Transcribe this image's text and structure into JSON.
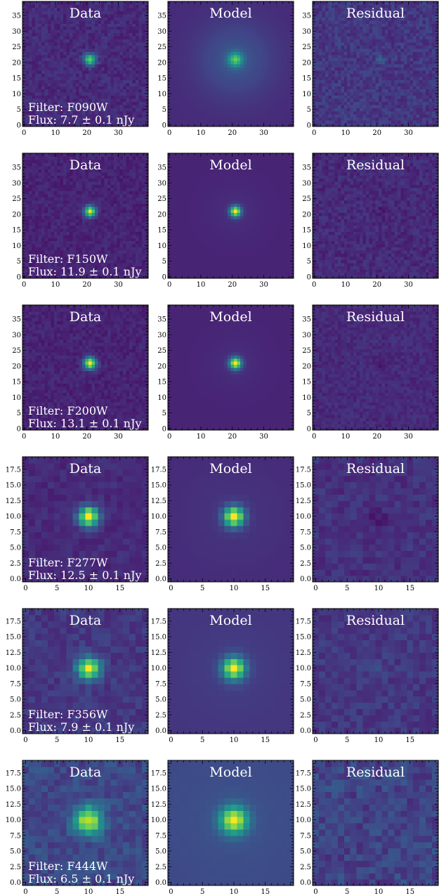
{
  "colors": {
    "colormap": "viridis",
    "background": "#ffffff",
    "annotation_text": "#ffffff",
    "axis": "#000000"
  },
  "chart_data": {
    "type": "heatmap",
    "layout": "6 rows x 3 columns of image panels",
    "column_titles": [
      "Data",
      "Model",
      "Residual"
    ],
    "axis_ticks_inward": true,
    "rows": [
      {
        "filter_label": "Filter: F090W",
        "flux_label": "Flux: 7.7 ± 0.1 nJy",
        "image_size": 40,
        "xlim": [
          0,
          39
        ],
        "ylim": [
          0,
          39
        ],
        "xticks": [
          0,
          10,
          20,
          30
        ],
        "yticks": [
          0,
          5,
          10,
          15,
          20,
          25,
          30,
          35
        ],
        "source_center": [
          21,
          21
        ],
        "panels": [
          {
            "title": "Data",
            "bg_level": 0.12,
            "noise": 0.05,
            "peak": 0.65,
            "sigma": 1.3
          },
          {
            "title": "Model",
            "bg_level": 0.12,
            "noise": 0.0,
            "peak": 0.5,
            "sigma": 1.6,
            "extended": true
          },
          {
            "title": "Residual",
            "bg_level": 0.16,
            "noise": 0.06,
            "peak": 0.15,
            "sigma": 1.0
          }
        ]
      },
      {
        "filter_label": "Filter: F150W",
        "flux_label": "Flux: 11.9 ± 0.1 nJy",
        "image_size": 40,
        "xlim": [
          0,
          39
        ],
        "ylim": [
          0,
          39
        ],
        "xticks": [
          0,
          10,
          20,
          30
        ],
        "yticks": [
          0,
          5,
          10,
          15,
          20,
          25,
          30,
          35
        ],
        "source_center": [
          21,
          21
        ],
        "panels": [
          {
            "title": "Data",
            "bg_level": 0.1,
            "noise": 0.04,
            "peak": 0.88,
            "sigma": 1.2
          },
          {
            "title": "Model",
            "bg_level": 0.1,
            "noise": 0.0,
            "peak": 0.88,
            "sigma": 1.2
          },
          {
            "title": "Residual",
            "bg_level": 0.12,
            "noise": 0.05,
            "peak": -0.05,
            "sigma": 1.2
          }
        ]
      },
      {
        "filter_label": "Filter: F200W",
        "flux_label": "Flux: 13.1 ± 0.1 nJy",
        "image_size": 40,
        "xlim": [
          0,
          39
        ],
        "ylim": [
          0,
          39
        ],
        "xticks": [
          0,
          10,
          20,
          30
        ],
        "yticks": [
          0,
          5,
          10,
          15,
          20,
          25,
          30,
          35
        ],
        "source_center": [
          21,
          21
        ],
        "panels": [
          {
            "title": "Data",
            "bg_level": 0.1,
            "noise": 0.04,
            "peak": 0.9,
            "sigma": 1.3
          },
          {
            "title": "Model",
            "bg_level": 0.1,
            "noise": 0.0,
            "peak": 0.9,
            "sigma": 1.3
          },
          {
            "title": "Residual",
            "bg_level": 0.12,
            "noise": 0.04,
            "peak": -0.07,
            "sigma": 1.2
          }
        ]
      },
      {
        "filter_label": "Filter: F277W",
        "flux_label": "Flux: 12.5 ± 0.1 nJy",
        "image_size": 20,
        "xlim": [
          0,
          19
        ],
        "ylim": [
          0,
          19
        ],
        "xticks": [
          0,
          5,
          10,
          15
        ],
        "yticks": [
          0.0,
          2.5,
          5.0,
          7.5,
          10.0,
          12.5,
          15.0,
          17.5
        ],
        "source_center": [
          10,
          10
        ],
        "panels": [
          {
            "title": "Data",
            "bg_level": 0.12,
            "noise": 0.04,
            "peak": 0.9,
            "sigma": 1.1
          },
          {
            "title": "Model",
            "bg_level": 0.12,
            "noise": 0.0,
            "peak": 0.9,
            "sigma": 1.1
          },
          {
            "title": "Residual",
            "bg_level": 0.14,
            "noise": 0.05,
            "peak": -0.08,
            "sigma": 0.9
          }
        ]
      },
      {
        "filter_label": "Filter: F356W",
        "flux_label": "Flux: 7.9 ± 0.1 nJy",
        "image_size": 20,
        "xlim": [
          0,
          19
        ],
        "ylim": [
          0,
          19
        ],
        "xticks": [
          0,
          5,
          10,
          15
        ],
        "yticks": [
          0.0,
          2.5,
          5.0,
          7.5,
          10.0,
          12.5,
          15.0,
          17.5
        ],
        "source_center": [
          10,
          10
        ],
        "panels": [
          {
            "title": "Data",
            "bg_level": 0.16,
            "noise": 0.05,
            "peak": 0.82,
            "sigma": 1.25
          },
          {
            "title": "Model",
            "bg_level": 0.15,
            "noise": 0.0,
            "peak": 0.82,
            "sigma": 1.25
          },
          {
            "title": "Residual",
            "bg_level": 0.16,
            "noise": 0.05,
            "peak": 0.05,
            "sigma": 1.0
          }
        ]
      },
      {
        "filter_label": "Filter: F444W",
        "flux_label": "Flux: 6.5 ± 0.1 nJy",
        "image_size": 20,
        "xlim": [
          0,
          19
        ],
        "ylim": [
          0,
          19
        ],
        "xticks": [
          0,
          5,
          10,
          15
        ],
        "yticks": [
          0.0,
          2.5,
          5.0,
          7.5,
          10.0,
          12.5,
          15.0,
          17.5
        ],
        "source_center": [
          10,
          10
        ],
        "panels": [
          {
            "title": "Data",
            "bg_level": 0.22,
            "noise": 0.07,
            "peak": 0.74,
            "sigma": 1.5
          },
          {
            "title": "Model",
            "bg_level": 0.22,
            "noise": 0.0,
            "peak": 0.74,
            "sigma": 1.5
          },
          {
            "title": "Residual",
            "bg_level": 0.2,
            "noise": 0.08,
            "peak": 0.05,
            "sigma": 1.0
          }
        ]
      }
    ]
  }
}
